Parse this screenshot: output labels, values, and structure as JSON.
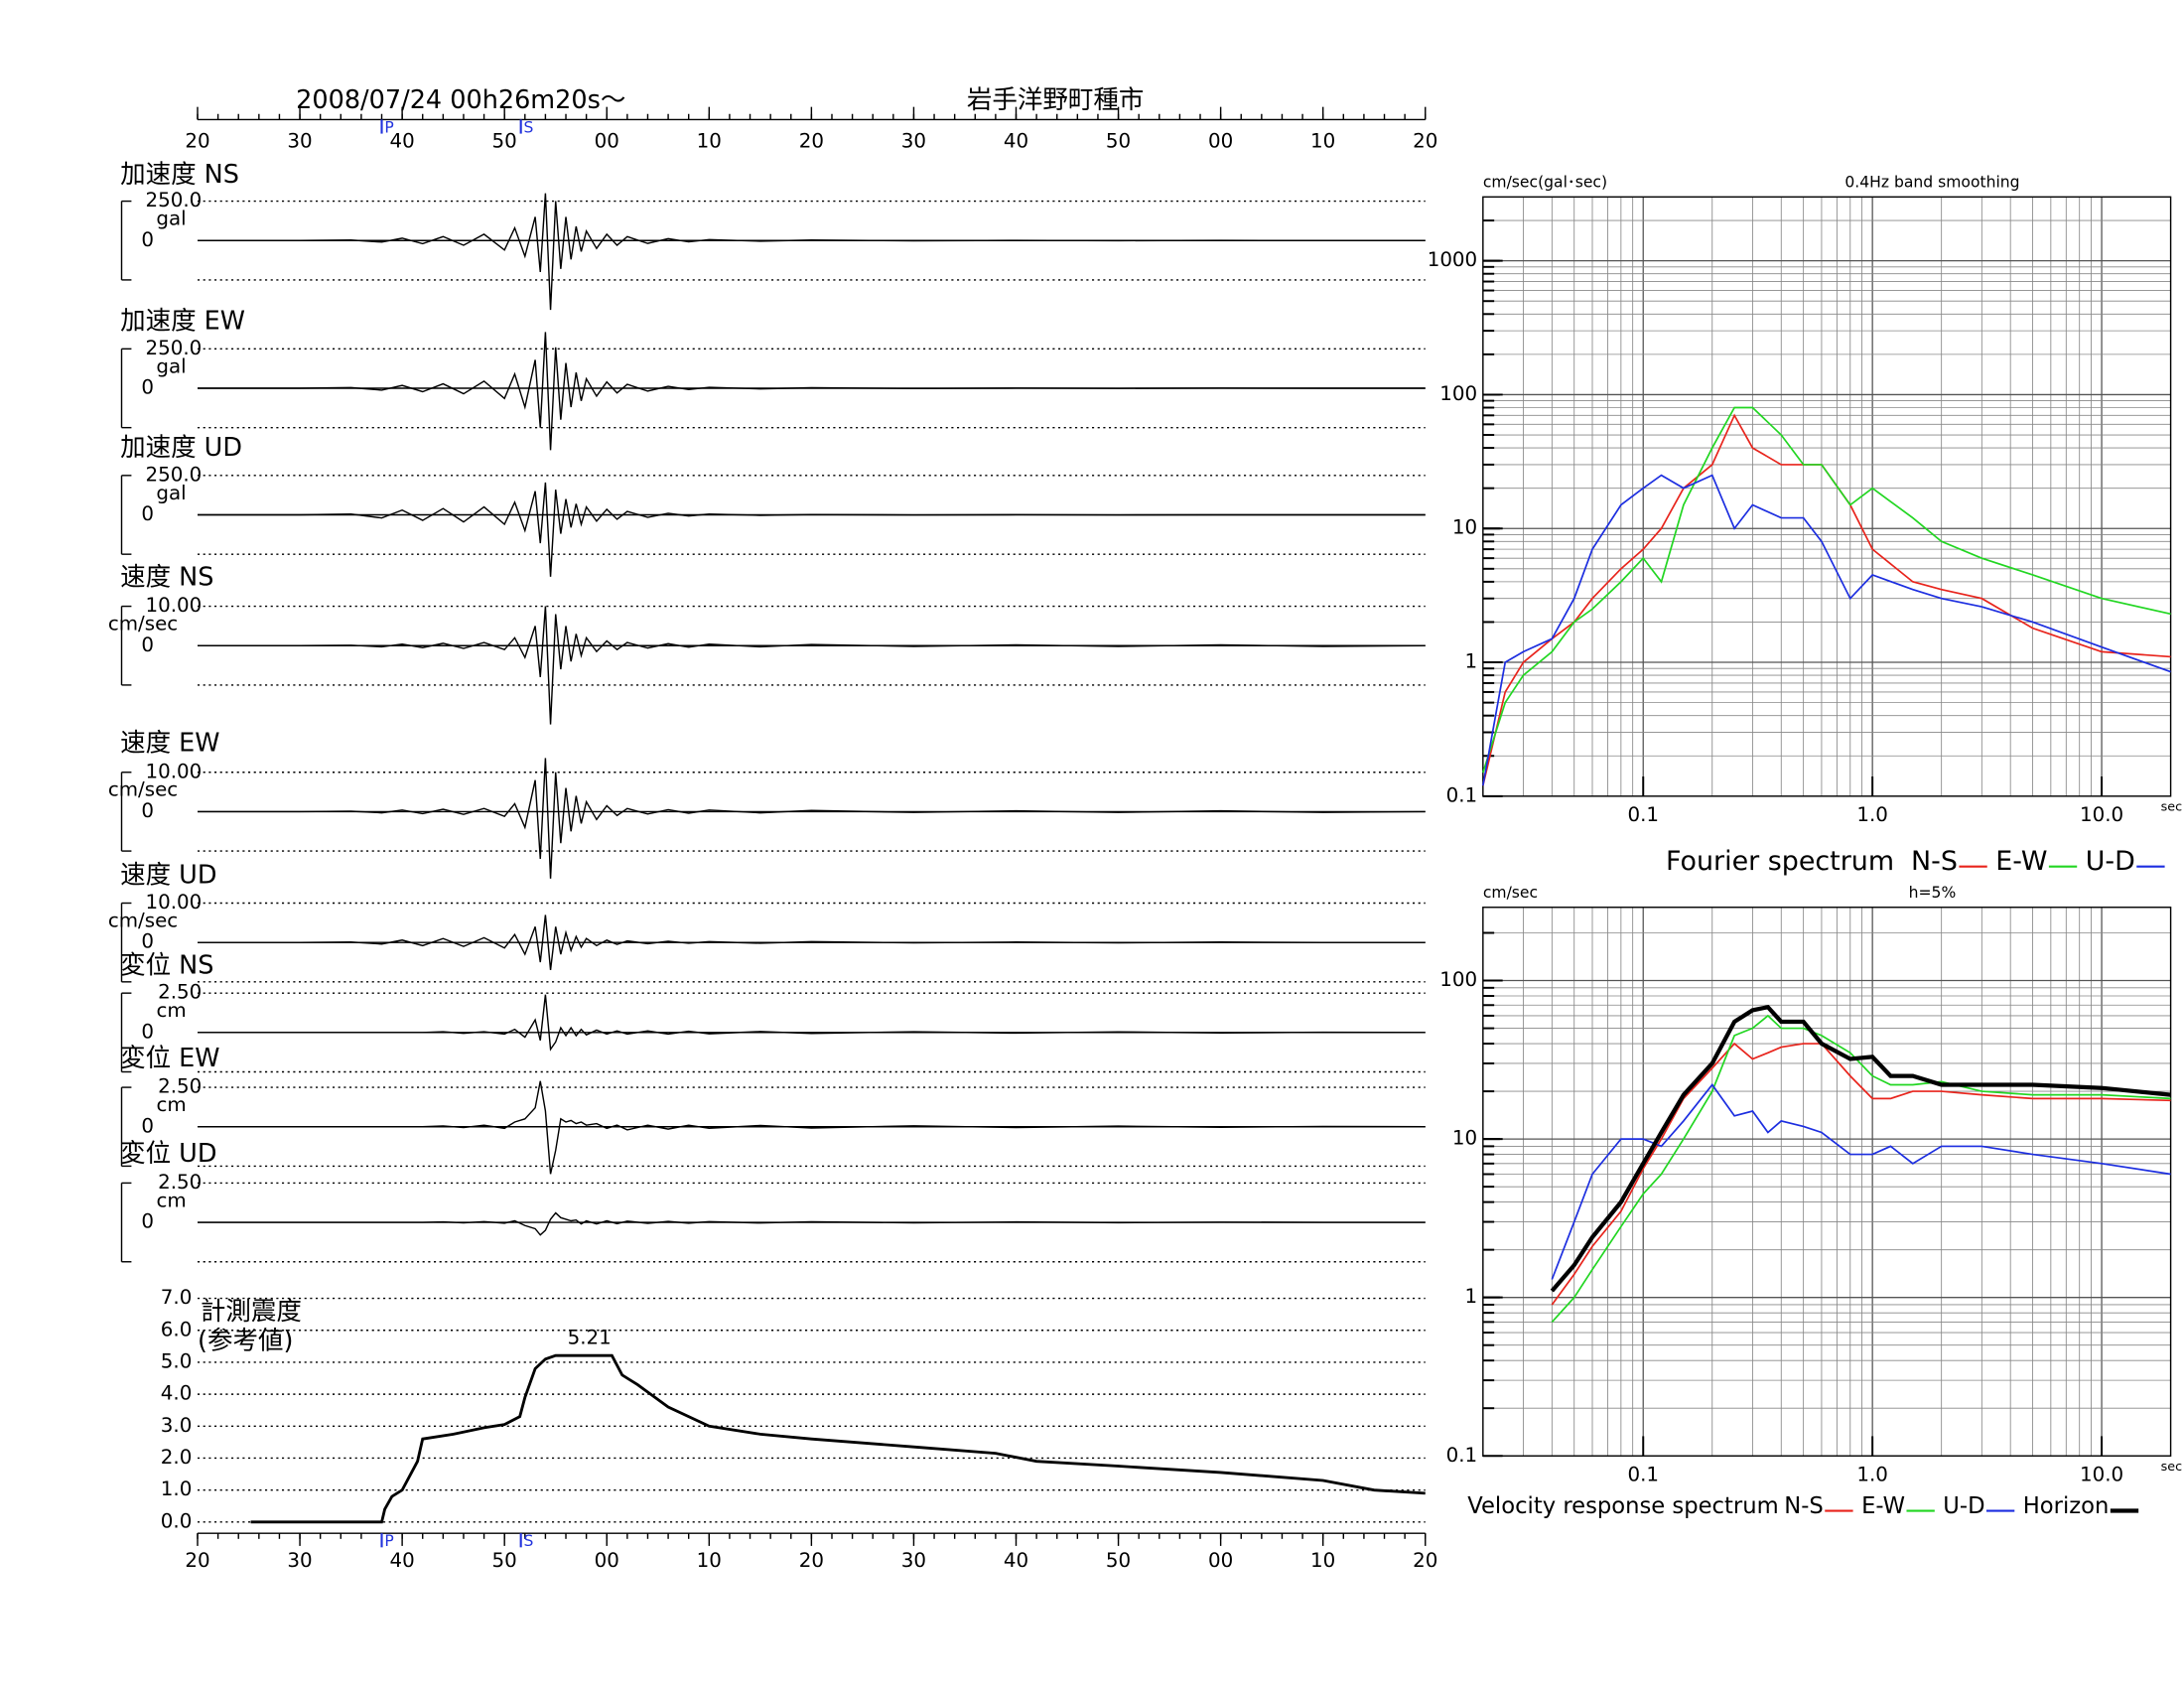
{
  "header": {
    "date": "2008/07/24  00h26m20s〜",
    "station": "岩手洋野町種市"
  },
  "chart_data": [
    {
      "type": "waveform",
      "xlim": [
        0,
        120
      ],
      "xticks": [
        {
          "value": 0,
          "label": "20"
        },
        {
          "value": 10,
          "label": "30"
        },
        {
          "value": 20,
          "label": "40"
        },
        {
          "value": 30,
          "label": "50"
        },
        {
          "value": 40,
          "label": "00"
        },
        {
          "value": 50,
          "label": "10"
        },
        {
          "value": 60,
          "label": "20"
        },
        {
          "value": 70,
          "label": "30"
        },
        {
          "value": 80,
          "label": "40"
        },
        {
          "value": 90,
          "label": "50"
        },
        {
          "value": 100,
          "label": "00"
        },
        {
          "value": 110,
          "label": "10"
        },
        {
          "value": 120,
          "label": "20"
        }
      ],
      "phases": [
        {
          "label": "P",
          "x": 18
        },
        {
          "label": "S",
          "x": 31.6
        }
      ],
      "x": [
        0,
        10,
        15,
        18,
        20,
        22,
        24,
        26,
        28,
        30,
        31,
        32,
        33,
        33.5,
        34,
        34.5,
        35,
        35.5,
        36,
        36.5,
        37,
        37.5,
        38,
        39,
        40,
        41,
        42,
        44,
        46,
        48,
        50,
        55,
        60,
        70,
        80,
        90,
        100,
        110,
        120
      ],
      "series": [
        {
          "name": "加速度 NS",
          "unit": "gal",
          "ylim": [
            -250,
            250
          ],
          "yticks": [
            {
              "value": 250,
              "label": "250.0"
            },
            0
          ],
          "color": "#000000",
          "values": [
            0,
            0,
            3,
            -10,
            15,
            -20,
            25,
            -30,
            40,
            -60,
            80,
            -100,
            150,
            -200,
            300,
            -440,
            250,
            -180,
            150,
            -120,
            90,
            -70,
            60,
            -50,
            40,
            -30,
            25,
            -18,
            12,
            -8,
            6,
            -4,
            3,
            -2,
            1,
            -1,
            1,
            0,
            0
          ]
        },
        {
          "name": "加速度 EW",
          "unit": "gal",
          "ylim": [
            -250,
            250
          ],
          "yticks": [
            {
              "value": 250,
              "label": "250.0"
            },
            0
          ],
          "color": "#000000",
          "values": [
            0,
            0,
            4,
            -12,
            18,
            -22,
            28,
            -35,
            45,
            -65,
            90,
            -120,
            180,
            -250,
            357,
            -393,
            260,
            -200,
            160,
            -120,
            100,
            -80,
            60,
            -50,
            40,
            -30,
            25,
            -18,
            12,
            -8,
            6,
            -4,
            3,
            -2,
            1,
            -1,
            1,
            0,
            0
          ]
        },
        {
          "name": "加速度 UD",
          "unit": "gal",
          "ylim": [
            -250,
            250
          ],
          "yticks": [
            {
              "value": 250,
              "label": "250.0"
            },
            0
          ],
          "color": "#000000",
          "values": [
            0,
            0,
            5,
            -20,
            30,
            -35,
            40,
            -45,
            50,
            -60,
            80,
            -100,
            150,
            -180,
            205,
            -393,
            160,
            -120,
            100,
            -80,
            70,
            -60,
            50,
            -40,
            35,
            -28,
            22,
            -16,
            10,
            -7,
            5,
            -3,
            2,
            -1,
            1,
            -1,
            0,
            0,
            0
          ]
        },
        {
          "name": "速度 NS",
          "unit": "cm/sec",
          "ylim": [
            -10,
            10
          ],
          "yticks": [
            {
              "value": 10,
              "label": "10.00"
            },
            0
          ],
          "color": "#000000",
          "values": [
            0,
            0,
            0.1,
            -0.3,
            0.4,
            -0.5,
            0.6,
            -0.7,
            0.8,
            -1,
            2,
            -3,
            5,
            -8,
            10,
            -20,
            8,
            -6,
            5,
            -4,
            3,
            -2.5,
            2,
            -1.5,
            1.2,
            -1,
            0.8,
            -0.6,
            0.5,
            -0.4,
            0.4,
            -0.3,
            0.3,
            -0.2,
            0.2,
            -0.2,
            0.2,
            -0.2,
            0
          ]
        },
        {
          "name": "速度 EW",
          "unit": "cm/sec",
          "ylim": [
            -10,
            10
          ],
          "yticks": [
            {
              "value": 10,
              "label": "10.00"
            },
            0
          ],
          "color": "#000000",
          "values": [
            0,
            0,
            0.1,
            -0.3,
            0.4,
            -0.5,
            0.6,
            -0.7,
            0.8,
            -1.2,
            2,
            -4,
            8,
            -12,
            13.6,
            -17,
            10,
            -8,
            6,
            -5,
            4,
            -3,
            2.5,
            -2,
            1.5,
            -1,
            0.8,
            -0.6,
            0.5,
            -0.4,
            0.4,
            -0.3,
            0.3,
            -0.2,
            0.2,
            -0.2,
            0.2,
            -0.2,
            0
          ]
        },
        {
          "name": "速度 UD",
          "unit": "cm/sec",
          "ylim": [
            -10,
            10
          ],
          "yticks": [
            {
              "value": 10,
              "label": "10.00"
            },
            0
          ],
          "color": "#000000",
          "values": [
            0,
            0,
            0.1,
            -0.4,
            0.6,
            -0.8,
            1,
            -1,
            1.2,
            -1.4,
            2,
            -3,
            4,
            -5,
            7,
            -7,
            4,
            -3,
            2.5,
            -2,
            1.5,
            -1.2,
            1,
            -0.8,
            0.6,
            -0.5,
            0.4,
            -0.3,
            0.3,
            -0.2,
            0.2,
            -0.2,
            0.2,
            -0.1,
            0.1,
            -0.1,
            0.1,
            0,
            0
          ]
        },
        {
          "name": "変位 NS",
          "unit": "cm",
          "ylim": [
            -2.5,
            2.5
          ],
          "yticks": [
            {
              "value": 2.5,
              "label": "2.50"
            },
            0
          ],
          "color": "#000000",
          "values": [
            0,
            0,
            0,
            0,
            0,
            0,
            0.05,
            -0.05,
            0.05,
            -0.1,
            0.2,
            -0.3,
            0.8,
            -0.5,
            2.4,
            -1.07,
            -0.6,
            0.3,
            -0.2,
            0.3,
            -0.2,
            0.2,
            -0.15,
            0.15,
            -0.1,
            0.1,
            -0.1,
            0.1,
            -0.1,
            0.08,
            -0.08,
            0.06,
            -0.06,
            0.05,
            -0.04,
            0.04,
            -0.03,
            0.02,
            0
          ]
        },
        {
          "name": "変位 EW",
          "unit": "cm",
          "ylim": [
            -2.5,
            2.5
          ],
          "yticks": [
            {
              "value": 2.5,
              "label": "2.50"
            },
            0
          ],
          "color": "#000000",
          "values": [
            0,
            0,
            0,
            0,
            0,
            0,
            0.05,
            -0.05,
            0.1,
            -0.1,
            0.3,
            0.5,
            1.2,
            2.9,
            1,
            -3,
            -1.5,
            0.5,
            0.3,
            0.4,
            0.2,
            0.3,
            0.1,
            0.2,
            -0.1,
            0.1,
            -0.2,
            0.1,
            -0.15,
            0.1,
            -0.1,
            0.08,
            -0.08,
            0.06,
            -0.05,
            0.04,
            -0.03,
            0.02,
            0
          ]
        },
        {
          "name": "変位 UD",
          "unit": "cm",
          "ylim": [
            -2.5,
            2.5
          ],
          "yticks": [
            {
              "value": 2.5,
              "label": "2.50"
            },
            0
          ],
          "color": "#000000",
          "values": [
            0,
            0,
            0,
            0,
            0,
            0,
            0.03,
            -0.03,
            0.05,
            -0.05,
            0.1,
            -0.2,
            -0.4,
            -0.8,
            -0.5,
            0.2,
            0.6,
            0.3,
            0.2,
            0.1,
            0.15,
            -0.1,
            0.1,
            -0.1,
            0.1,
            -0.08,
            0.08,
            -0.06,
            0.06,
            -0.05,
            0.05,
            -0.04,
            0.04,
            -0.03,
            0.03,
            -0.02,
            0.02,
            0,
            0
          ]
        }
      ]
    },
    {
      "type": "intensity",
      "title": "計測震度",
      "subtitle": "(参考値)",
      "annotation": "5.21",
      "color": "#000000",
      "grid": true,
      "xlim": [
        0,
        120
      ],
      "xticks": [
        {
          "value": 0,
          "label": "20"
        },
        {
          "value": 10,
          "label": "30"
        },
        {
          "value": 20,
          "label": "40"
        },
        {
          "value": 30,
          "label": "50"
        },
        {
          "value": 40,
          "label": "00"
        },
        {
          "value": 50,
          "label": "10"
        },
        {
          "value": 60,
          "label": "20"
        },
        {
          "value": 70,
          "label": "30"
        },
        {
          "value": 80,
          "label": "40"
        },
        {
          "value": 90,
          "label": "50"
        },
        {
          "value": 100,
          "label": "00"
        },
        {
          "value": 110,
          "label": "10"
        },
        {
          "value": 120,
          "label": "20"
        }
      ],
      "phases": [
        {
          "label": "P",
          "x": 18
        },
        {
          "label": "S",
          "x": 31.6
        }
      ],
      "ylim": [
        0,
        7
      ],
      "yticks": [
        {
          "value": 0,
          "label": "0.0"
        },
        {
          "value": 1,
          "label": "1.0"
        },
        {
          "value": 2,
          "label": "2.0"
        },
        {
          "value": 3,
          "label": "3.0"
        },
        {
          "value": 4,
          "label": "4.0"
        },
        {
          "value": 5,
          "label": "5.0"
        },
        {
          "value": 6,
          "label": "6.0"
        },
        {
          "value": 7,
          "label": "7.0"
        }
      ],
      "x": [
        5.2,
        18,
        18.3,
        19,
        20,
        21.5,
        22,
        25,
        28,
        30,
        31.5,
        32,
        33,
        34,
        35,
        40.5,
        41.5,
        43,
        46,
        50,
        55,
        60,
        70,
        78,
        82,
        90,
        100,
        110,
        115,
        120
      ],
      "values": [
        0,
        0,
        0.4,
        0.8,
        1.0,
        1.9,
        2.6,
        2.75,
        2.95,
        3.05,
        3.3,
        3.9,
        4.8,
        5.1,
        5.21,
        5.21,
        4.6,
        4.3,
        3.6,
        3.0,
        2.75,
        2.6,
        2.35,
        2.15,
        1.9,
        1.75,
        1.55,
        1.3,
        1.0,
        0.9
      ]
    },
    {
      "type": "loglog",
      "title": "Fourier spectrum",
      "y_label": "cm/sec(gal･sec)",
      "note": "0.4Hz band smoothing",
      "x_label": "sec",
      "log_scale": true,
      "grid": true,
      "xlim": [
        0.02,
        20
      ],
      "ylim": [
        0.1,
        3000
      ],
      "xticks": [
        0.1,
        {
          "value": 1,
          "label": "1.0"
        },
        {
          "value": 10,
          "label": "10.0"
        }
      ],
      "yticks": [
        1000,
        100,
        10,
        1,
        0.1
      ],
      "x": [
        0.02,
        0.025,
        0.03,
        0.04,
        0.05,
        0.06,
        0.08,
        0.1,
        0.12,
        0.15,
        0.2,
        0.25,
        0.3,
        0.4,
        0.5,
        0.6,
        0.8,
        1,
        1.5,
        2,
        3,
        5,
        10,
        20
      ],
      "series": [
        {
          "name": "N-S",
          "color": "#e8241c",
          "values": [
            0.12,
            0.6,
            1,
            1.5,
            2,
            3,
            5,
            7,
            10,
            20,
            30,
            70,
            40,
            30,
            30,
            30,
            15,
            7,
            4,
            3.5,
            3,
            1.8,
            1.2,
            1.1
          ]
        },
        {
          "name": "E-W",
          "color": "#22d622",
          "values": [
            0.15,
            0.5,
            0.8,
            1.2,
            2,
            2.5,
            4,
            6,
            4,
            15,
            40,
            80,
            80,
            50,
            30,
            30,
            15,
            20,
            12,
            8,
            6,
            4.5,
            3,
            2.3
          ]
        },
        {
          "name": "U-D",
          "color": "#1c2ee0",
          "values": [
            0.12,
            1,
            1.2,
            1.5,
            3,
            7,
            15,
            20,
            25,
            20,
            25,
            10,
            15,
            12,
            12,
            8,
            3,
            4.5,
            3.5,
            3,
            2.6,
            2,
            1.3,
            0.85
          ]
        }
      ]
    },
    {
      "type": "loglog",
      "title": "Velocity response spectrum",
      "y_label": "cm/sec",
      "note": "h=5%",
      "x_label": "sec",
      "log_scale": true,
      "grid": true,
      "xlim": [
        0.02,
        20
      ],
      "ylim": [
        0.1,
        290
      ],
      "xticks": [
        0.1,
        {
          "value": 1,
          "label": "1.0"
        },
        {
          "value": 10,
          "label": "10.0"
        }
      ],
      "yticks": [
        100,
        10,
        1,
        0.1
      ],
      "x": [
        0.04,
        0.05,
        0.06,
        0.08,
        0.1,
        0.12,
        0.15,
        0.2,
        0.25,
        0.3,
        0.35,
        0.4,
        0.5,
        0.6,
        0.8,
        1,
        1.2,
        1.5,
        2,
        3,
        5,
        10,
        20
      ],
      "series": [
        {
          "name": "N-S",
          "color": "#e8241c",
          "values": [
            0.9,
            1.4,
            2.1,
            3.5,
            6.5,
            10,
            18,
            28,
            40,
            32,
            35,
            38,
            40,
            40,
            25,
            18,
            18,
            20,
            20,
            19,
            18,
            18,
            17.5
          ]
        },
        {
          "name": "E-W",
          "color": "#22d622",
          "values": [
            0.7,
            1,
            1.5,
            2.8,
            4.5,
            6,
            10,
            20,
            45,
            50,
            60,
            50,
            50,
            45,
            35,
            25,
            22,
            22,
            23,
            20,
            19,
            19,
            18
          ]
        },
        {
          "name": "U-D",
          "color": "#1c2ee0",
          "values": [
            1.3,
            3,
            6,
            10,
            10,
            9,
            13,
            22,
            14,
            15,
            11,
            13,
            12,
            11,
            8,
            8,
            9,
            7,
            9,
            9,
            8,
            7,
            6
          ]
        },
        {
          "name": "Horizon",
          "color": "#000000",
          "width": 3,
          "values": [
            1.1,
            1.6,
            2.4,
            4,
            7,
            11,
            19,
            30,
            55,
            65,
            68,
            55,
            55,
            40,
            32,
            33,
            25,
            25,
            22,
            22,
            22,
            21,
            19
          ]
        }
      ]
    }
  ]
}
